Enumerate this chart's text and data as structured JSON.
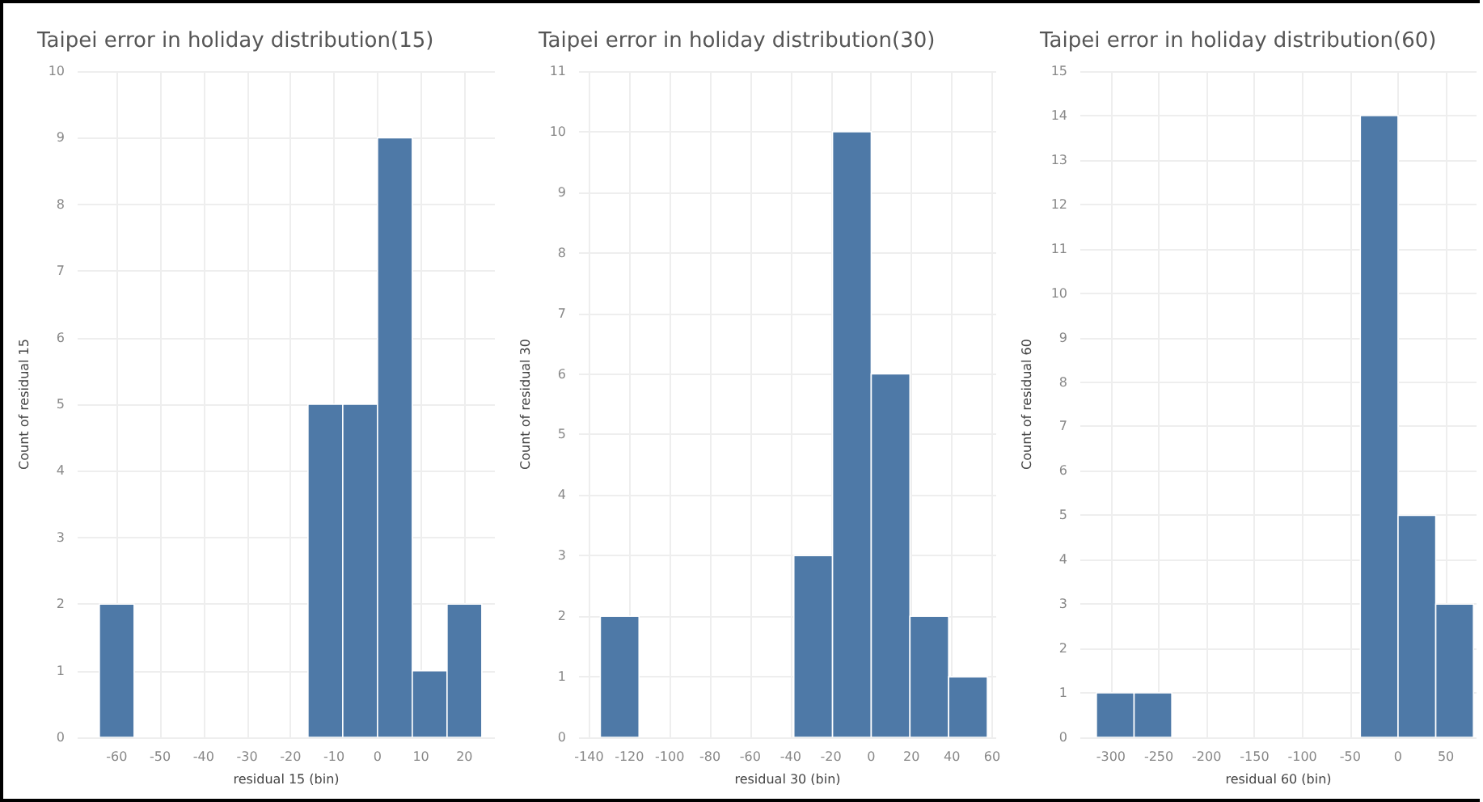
{
  "chart_data": [
    {
      "type": "histogram",
      "title": "Taipei error in holiday distribution(15)",
      "xlabel": "residual 15 (bin)",
      "ylabel": "Count of residual 15",
      "color": "#4e79a7",
      "bins": [
        -64,
        -56,
        -48,
        -40,
        -32,
        -24,
        -16,
        -8,
        0,
        8,
        16,
        24
      ],
      "values": [
        2,
        0,
        0,
        0,
        0,
        0,
        5,
        5,
        9,
        1,
        2
      ],
      "xlim": [
        -69,
        27
      ],
      "xticks": [
        -60,
        -50,
        -40,
        -30,
        -20,
        -10,
        0,
        10,
        20
      ],
      "ylim": [
        0,
        10
      ],
      "yticks": [
        0,
        1,
        2,
        3,
        4,
        5,
        6,
        7,
        8,
        9,
        10
      ],
      "grid": true
    },
    {
      "type": "histogram",
      "title": "Taipei error in holiday distribution(30)",
      "xlabel": "residual 30 (bin)",
      "ylabel": "Count of residual 30",
      "color": "#4e79a7",
      "bins": [
        -134.4,
        -115.2,
        -96,
        -76.8,
        -57.6,
        -38.4,
        -19.2,
        0,
        19.2,
        38.4,
        57.6
      ],
      "values": [
        2,
        0,
        0,
        0,
        0,
        3,
        10,
        6,
        2,
        1
      ],
      "xlim": [
        -145,
        62
      ],
      "xticks": [
        -140,
        -120,
        -100,
        -80,
        -60,
        -40,
        -20,
        0,
        20,
        40,
        60
      ],
      "ylim": [
        0,
        11
      ],
      "yticks": [
        0,
        1,
        2,
        3,
        4,
        5,
        6,
        7,
        8,
        9,
        10,
        11
      ],
      "grid": true
    },
    {
      "type": "histogram",
      "title": "Taipei error in holiday distribution(60)",
      "xlabel": "residual 60 (bin)",
      "ylabel": "Count of residual 60",
      "color": "#4e79a7",
      "bins": [
        -315.2,
        -275.8,
        -236.4,
        -197,
        -157.6,
        -118.2,
        -78.8,
        -39.4,
        0,
        39.4,
        78.8
      ],
      "values": [
        1,
        1,
        0,
        0,
        0,
        0,
        0,
        14,
        5,
        3
      ],
      "xlim": [
        -332,
        82
      ],
      "xticks": [
        -300,
        -250,
        -200,
        -150,
        -100,
        -50,
        0,
        50
      ],
      "ylim": [
        0,
        15
      ],
      "yticks": [
        0,
        1,
        2,
        3,
        4,
        5,
        6,
        7,
        8,
        9,
        10,
        11,
        12,
        13,
        14,
        15
      ],
      "grid": true
    }
  ]
}
